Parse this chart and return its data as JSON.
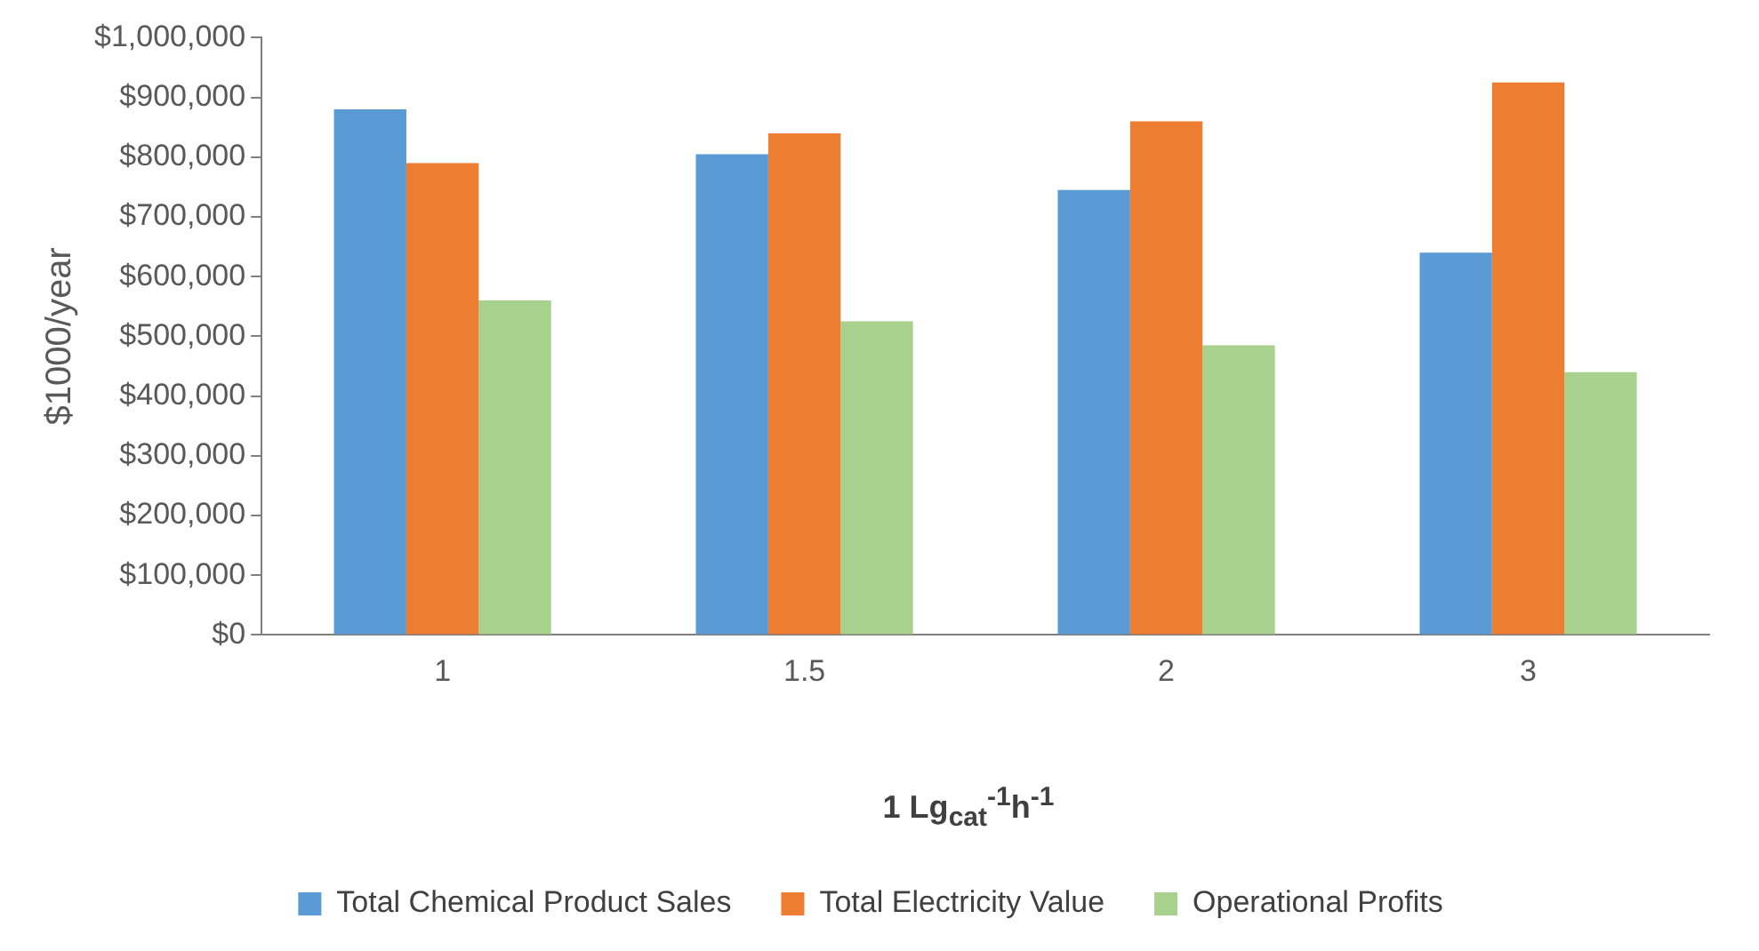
{
  "chart_data": {
    "type": "bar",
    "xlabel": "1 Lg$_{cat}$$^{-1}$h$^{-1}$",
    "ylabel": "$1000/year",
    "categories": [
      "1",
      "1.5",
      "2",
      "3"
    ],
    "series": [
      {
        "name": "Total Chemical Product Sales",
        "color": "#5b9bd5",
        "values": [
          880000,
          805000,
          745000,
          640000
        ]
      },
      {
        "name": "Total Electricity Value",
        "color": "#ed7d31",
        "values": [
          790000,
          840000,
          860000,
          925000
        ]
      },
      {
        "name": "Operational Profits",
        "color": "#a9d18e",
        "values": [
          560000,
          525000,
          485000,
          440000
        ]
      }
    ],
    "ylim": [
      0,
      1000000
    ],
    "yticks": [
      {
        "value": 0,
        "label": "$0"
      },
      {
        "value": 100000,
        "label": "$100,000"
      },
      {
        "value": 200000,
        "label": "$200,000"
      },
      {
        "value": 300000,
        "label": "$300,000"
      },
      {
        "value": 400000,
        "label": "$400,000"
      },
      {
        "value": 500000,
        "label": "$500,000"
      },
      {
        "value": 600000,
        "label": "$600,000"
      },
      {
        "value": 700000,
        "label": "$700,000"
      },
      {
        "value": 800000,
        "label": "$800,000"
      },
      {
        "value": 900000,
        "label": "$900,000"
      },
      {
        "value": 1000000,
        "label": "$1,000,000"
      }
    ],
    "grid": false,
    "legend": "bottom"
  }
}
